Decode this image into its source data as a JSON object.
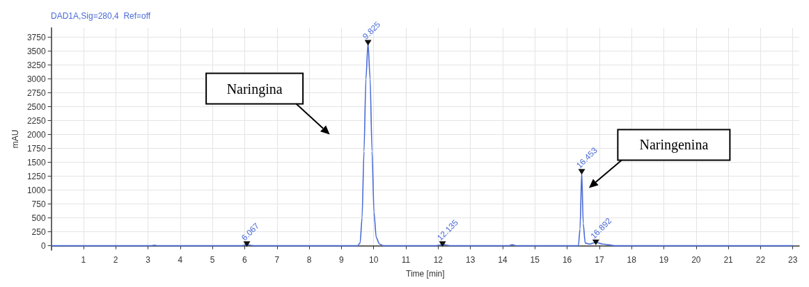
{
  "chart_data": {
    "type": "line",
    "title": "DAD1A,Sig=280,4  Ref=off",
    "xlabel": "Time [min]",
    "ylabel": "mAU",
    "xlim": [
      0,
      23.2
    ],
    "ylim": [
      -80,
      3920
    ],
    "xticks": [
      1,
      2,
      3,
      4,
      5,
      6,
      7,
      8,
      9,
      10,
      11,
      12,
      13,
      14,
      15,
      16,
      17,
      18,
      19,
      20,
      21,
      22,
      23
    ],
    "yticks": [
      0,
      250,
      500,
      750,
      1000,
      1250,
      1500,
      1750,
      2000,
      2250,
      2500,
      2750,
      3000,
      3250,
      3500,
      3750
    ],
    "grid": true,
    "marker": "none",
    "line_style": "solid",
    "series": [
      {
        "color": "#4a6bd6",
        "x": [
          0,
          3.1,
          3.2,
          3.3,
          5.9,
          6.0,
          6.067,
          6.15,
          6.3,
          9.5,
          9.58,
          9.64,
          9.7,
          9.76,
          9.825,
          9.89,
          9.95,
          10.01,
          10.08,
          10.18,
          10.3,
          11.9,
          12.05,
          12.135,
          12.25,
          12.4,
          14.2,
          14.3,
          14.4,
          16.35,
          16.4,
          16.453,
          16.5,
          16.56,
          16.7,
          16.892,
          17.1,
          17.5,
          23.0
        ],
        "values": [
          0,
          0,
          10,
          0,
          0,
          10,
          30,
          10,
          0,
          0,
          50,
          500,
          1700,
          3000,
          3650,
          3000,
          1700,
          600,
          150,
          30,
          0,
          0,
          10,
          30,
          10,
          0,
          0,
          20,
          0,
          0,
          300,
          1330,
          400,
          50,
          30,
          60,
          30,
          0,
          0
        ]
      }
    ],
    "annotations": [
      {
        "text": "6.067",
        "x": 6.067,
        "y": 30
      },
      {
        "text": "9.825",
        "x": 9.825,
        "y": 3650
      },
      {
        "text": "12.135",
        "x": 12.135,
        "y": 30
      },
      {
        "text": "16.453",
        "x": 16.453,
        "y": 1330
      },
      {
        "text": "16.892",
        "x": 16.892,
        "y": 60
      },
      "Naringina",
      "Naringenina"
    ]
  }
}
